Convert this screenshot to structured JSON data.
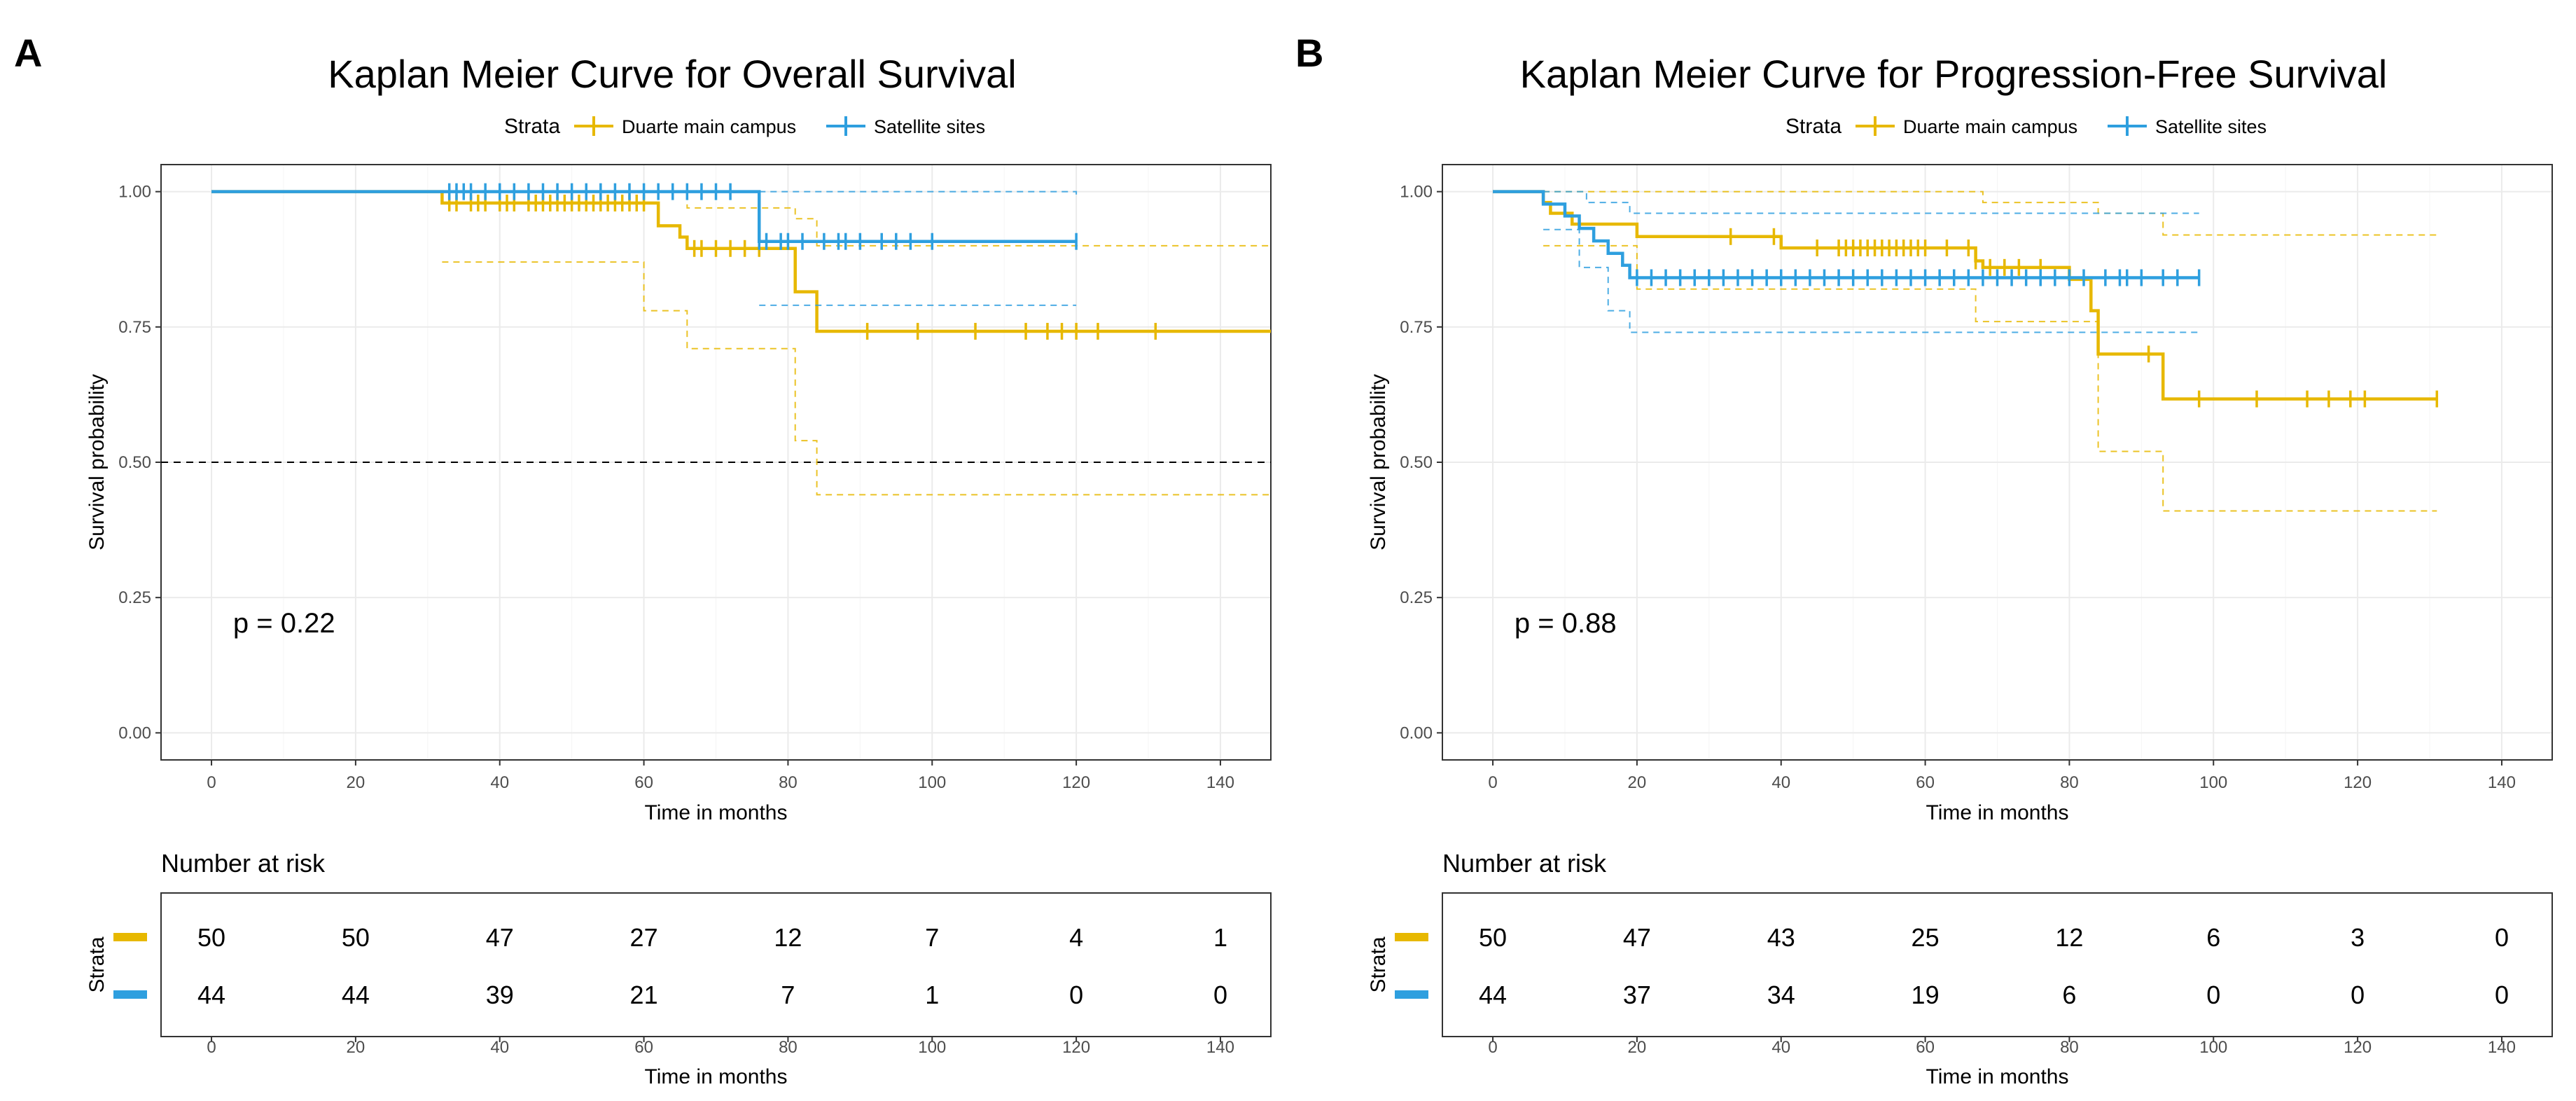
{
  "colors": {
    "main": "#E7B800",
    "satellite": "#2E9FDF",
    "grid": "#EBEBEB",
    "axis_text": "#4D4D4D",
    "frame": "#333333",
    "text": "#000000"
  },
  "panels": [
    {
      "label": "A",
      "title": "Kaplan Meier Curve for Overall Survival",
      "legend": {
        "title": "Strata",
        "entries": [
          "Duarte main campus",
          "Satellite sites"
        ]
      },
      "pvalue_text": "p = 0.22",
      "risk_title": "Number at risk",
      "risk_ylabel": "Strata",
      "risk_xlabel": "Time in months",
      "chart_data": {
        "type": "line",
        "title": "Kaplan Meier Curve for Overall Survival",
        "xlabel": "Time in months",
        "ylabel": "Survival probability",
        "xlim": [
          -7,
          147
        ],
        "ylim": [
          -0.05,
          1.05
        ],
        "x_ticks": [
          0,
          20,
          40,
          60,
          80,
          100,
          120,
          140
        ],
        "y_ticks": [
          0.0,
          0.25,
          0.5,
          0.75,
          1.0
        ],
        "y_tick_labels": [
          "0.00",
          "0.25",
          "0.50",
          "0.75",
          "1.00"
        ],
        "median_line": 0.5,
        "series": [
          {
            "name": "Duarte main campus",
            "steps": [
              [
                0,
                1.0
              ],
              [
                32,
                0.979
              ],
              [
                62,
                0.937
              ],
              [
                65,
                0.916
              ],
              [
                66,
                0.895
              ],
              [
                81,
                0.815
              ],
              [
                84,
                0.742
              ],
              [
                147,
                0.742
              ]
            ],
            "upper": [
              [
                32,
                1.0
              ],
              [
                62,
                1.0
              ],
              [
                66,
                0.97
              ],
              [
                81,
                0.95
              ],
              [
                84,
                0.9
              ],
              [
                147,
                0.9
              ]
            ],
            "lower": [
              [
                32,
                0.87
              ],
              [
                60,
                0.78
              ],
              [
                66,
                0.71
              ],
              [
                81,
                0.54
              ],
              [
                84,
                0.44
              ],
              [
                147,
                0.44
              ]
            ],
            "censor_x": [
              33,
              34,
              36,
              37,
              38,
              40,
              41,
              42,
              44,
              45,
              46,
              47,
              48,
              49,
              50,
              51,
              52,
              53,
              54,
              55,
              56,
              57,
              58,
              59,
              60,
              67,
              68,
              70,
              72,
              74,
              76,
              91,
              98,
              106,
              113,
              116,
              118,
              120,
              123,
              131
            ],
            "at_risk": [
              50,
              50,
              47,
              27,
              12,
              7,
              4,
              1
            ]
          },
          {
            "name": "Satellite sites",
            "steps": [
              [
                0,
                1.0
              ],
              [
                76,
                0.908
              ],
              [
                120,
                0.908
              ]
            ],
            "upper": [
              [
                76,
                1.0
              ],
              [
                120,
                0.99
              ]
            ],
            "lower": [
              [
                76,
                0.79
              ],
              [
                120,
                0.79
              ]
            ],
            "censor_x": [
              33,
              34,
              35,
              36,
              38,
              40,
              42,
              44,
              46,
              48,
              50,
              52,
              54,
              56,
              58,
              60,
              62,
              64,
              66,
              68,
              70,
              72,
              76,
              77,
              79,
              80,
              82,
              85,
              87,
              88,
              90,
              93,
              95,
              97,
              100,
              120
            ],
            "at_risk": [
              44,
              44,
              39,
              21,
              7,
              1,
              0,
              0
            ]
          }
        ]
      }
    },
    {
      "label": "B",
      "title": "Kaplan Meier Curve for Progression-Free Survival",
      "legend": {
        "title": "Strata",
        "entries": [
          "Duarte main campus",
          "Satellite sites"
        ]
      },
      "pvalue_text": "p = 0.88",
      "risk_title": "Number at risk",
      "risk_ylabel": "Strata",
      "risk_xlabel": "Time in months",
      "chart_data": {
        "type": "line",
        "title": "Kaplan Meier Curve for Progression-Free Survival",
        "xlabel": "Time in months",
        "ylabel": "Survival probability",
        "xlim": [
          -7,
          147
        ],
        "ylim": [
          -0.05,
          1.05
        ],
        "x_ticks": [
          0,
          20,
          40,
          60,
          80,
          100,
          120,
          140
        ],
        "y_ticks": [
          0.0,
          0.25,
          0.5,
          0.75,
          1.0
        ],
        "y_tick_labels": [
          "0.00",
          "0.25",
          "0.50",
          "0.75",
          "1.00"
        ],
        "median_line": null,
        "series": [
          {
            "name": "Duarte main campus",
            "steps": [
              [
                0,
                1.0
              ],
              [
                7,
                0.98
              ],
              [
                8,
                0.96
              ],
              [
                11,
                0.94
              ],
              [
                20,
                0.917
              ],
              [
                40,
                0.896
              ],
              [
                67,
                0.872
              ],
              [
                68,
                0.86
              ],
              [
                80,
                0.838
              ],
              [
                83,
                0.78
              ],
              [
                84,
                0.7
              ],
              [
                93,
                0.617
              ],
              [
                131,
                0.617
              ]
            ],
            "upper": [
              [
                7,
                1.0
              ],
              [
                68,
                0.98
              ],
              [
                84,
                0.96
              ],
              [
                93,
                0.92
              ],
              [
                131,
                0.92
              ]
            ],
            "lower": [
              [
                7,
                0.9
              ],
              [
                20,
                0.82
              ],
              [
                67,
                0.76
              ],
              [
                84,
                0.52
              ],
              [
                93,
                0.41
              ],
              [
                131,
                0.41
              ]
            ],
            "censor_x": [
              33,
              39,
              45,
              48,
              49,
              50,
              51,
              52,
              53,
              54,
              55,
              56,
              57,
              58,
              59,
              60,
              63,
              66,
              67,
              69,
              71,
              73,
              76,
              91,
              98,
              106,
              113,
              116,
              119,
              121,
              131
            ],
            "at_risk": [
              50,
              47,
              43,
              25,
              12,
              6,
              3,
              0
            ]
          },
          {
            "name": "Satellite sites",
            "steps": [
              [
                0,
                1.0
              ],
              [
                7,
                0.977
              ],
              [
                10,
                0.955
              ],
              [
                12,
                0.932
              ],
              [
                14,
                0.909
              ],
              [
                16,
                0.886
              ],
              [
                18,
                0.864
              ],
              [
                19,
                0.841
              ],
              [
                98,
                0.841
              ]
            ],
            "upper": [
              [
                7,
                1.0
              ],
              [
                13,
                0.98
              ],
              [
                19,
                0.96
              ],
              [
                98,
                0.96
              ]
            ],
            "lower": [
              [
                7,
                0.93
              ],
              [
                12,
                0.86
              ],
              [
                16,
                0.78
              ],
              [
                19,
                0.74
              ],
              [
                98,
                0.74
              ]
            ],
            "censor_x": [
              20,
              22,
              24,
              26,
              28,
              30,
              32,
              34,
              36,
              38,
              40,
              42,
              44,
              46,
              48,
              50,
              52,
              54,
              56,
              58,
              60,
              62,
              64,
              66,
              68,
              70,
              72,
              74,
              76,
              78,
              80,
              82,
              85,
              87,
              88,
              90,
              93,
              95,
              98
            ],
            "at_risk": [
              44,
              37,
              34,
              19,
              6,
              0,
              0,
              0
            ]
          }
        ]
      }
    }
  ]
}
